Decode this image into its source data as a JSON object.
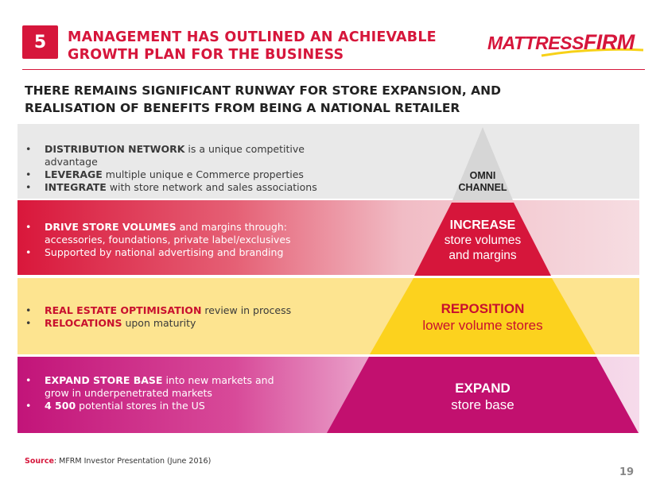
{
  "header": {
    "section_number": "5",
    "title": "MANAGEMENT HAS OUTLINED AN ACHIEVABLE GROWTH PLAN FOR THE BUSINESS",
    "logo_part1": "MATTRESS",
    "logo_part2": "FIRM"
  },
  "subtitle": "THERE REMAINS SIGNIFICANT RUNWAY FOR STORE EXPANSION, AND REALISATION OF BENEFITS FROM BEING A NATIONAL RETAILER",
  "bands": [
    {
      "color": "#e9e9e9",
      "bullets": [
        {
          "bold": "DISTRIBUTION NETWORK",
          "text": " is a unique competitive advantage"
        },
        {
          "bold": "LEVERAGE",
          "text": " multiple unique e Commerce properties"
        },
        {
          "bold": "INTEGRATE",
          "text": " with store network and sales associations"
        }
      ]
    },
    {
      "color": "#d9173b",
      "bullets": [
        {
          "bold": "DRIVE STORE VOLUMES",
          "text": " and margins through: accessories, foundations, private label/exclusives"
        },
        {
          "bold": "",
          "text": "Supported by national advertising and branding"
        }
      ]
    },
    {
      "color": "#fde490",
      "bullets": [
        {
          "bold": "REAL ESTATE OPTIMISATION",
          "text": " review in process"
        },
        {
          "bold": "RELOCATIONS",
          "text": " upon maturity"
        }
      ]
    },
    {
      "color": "#c21479",
      "bullets": [
        {
          "bold": "EXPAND STORE BASE",
          "text": " into new markets and grow in underpenetrated markets"
        },
        {
          "bold": "4 500",
          "text": " potential stores in the US"
        }
      ]
    }
  ],
  "pyramid": {
    "omni": {
      "line1": "OMNI",
      "line2": "CHANNEL",
      "color": "#d6d6d6"
    },
    "increase": {
      "bold": "INCREASE",
      "line2": "store volumes",
      "line3": "and margins",
      "color": "#d6163b"
    },
    "reposition": {
      "bold": "REPOSITION",
      "line2": "lower volume stores",
      "color": "#fcd21e"
    },
    "expand": {
      "bold": "EXPAND",
      "line2": "store base",
      "color": "#c2106f"
    }
  },
  "footer": {
    "source_label": "Source",
    "source_text": ":  MFRM Investor Presentation (June 2016)",
    "page_number": "19"
  },
  "colors": {
    "brand_red": "#d6163b",
    "logo_yellow": "#f7d117"
  }
}
